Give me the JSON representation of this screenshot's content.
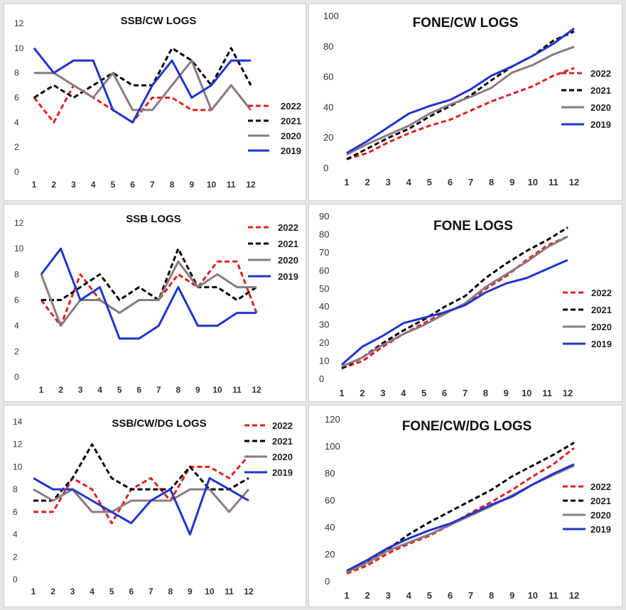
{
  "chart_data": [
    {
      "type": "line",
      "title": "SSB/CW LOGS",
      "x": [
        1,
        2,
        3,
        4,
        5,
        6,
        7,
        8,
        9,
        10,
        11,
        12
      ],
      "ylim": [
        0,
        12
      ],
      "ytick_step": 2,
      "legend": "right",
      "series": [
        {
          "name": "2022",
          "color": "#e0211d",
          "dash": true,
          "values": [
            6,
            4,
            7,
            6,
            5,
            4,
            6,
            6,
            5,
            5,
            7,
            5
          ]
        },
        {
          "name": "2021",
          "color": "#000000",
          "dash": true,
          "values": [
            6,
            7,
            6,
            7,
            8,
            7,
            7,
            10,
            9,
            7,
            10,
            7
          ]
        },
        {
          "name": "2020",
          "color": "#8c7a84",
          "dash": false,
          "values": [
            8,
            8,
            7,
            6,
            8,
            5,
            5,
            7,
            9,
            5,
            7,
            5
          ]
        },
        {
          "name": "2019",
          "color": "#1f35cc",
          "dash": false,
          "values": [
            10,
            8,
            9,
            9,
            5,
            4,
            7,
            9,
            6,
            7,
            9,
            9
          ]
        }
      ]
    },
    {
      "type": "line",
      "title": "FONE/CW LOGS",
      "x": [
        1,
        2,
        3,
        4,
        5,
        6,
        7,
        8,
        9,
        10,
        11,
        12
      ],
      "ylim": [
        0,
        100
      ],
      "ytick_step": 20,
      "legend": "right",
      "series": [
        {
          "name": "2022",
          "color": "#e0211d",
          "dash": true,
          "values": [
            6,
            10,
            17,
            23,
            28,
            32,
            38,
            44,
            49,
            54,
            61,
            66
          ]
        },
        {
          "name": "2021",
          "color": "#000000",
          "dash": true,
          "values": [
            6,
            13,
            20,
            26,
            34,
            41,
            48,
            58,
            67,
            74,
            84,
            90
          ]
        },
        {
          "name": "2020",
          "color": "#8c7a84",
          "dash": false,
          "values": [
            9,
            16,
            22,
            28,
            36,
            42,
            47,
            53,
            63,
            68,
            75,
            80
          ]
        },
        {
          "name": "2019",
          "color": "#1f35cc",
          "dash": false,
          "values": [
            10,
            18,
            27,
            36,
            41,
            45,
            52,
            61,
            67,
            74,
            82,
            92
          ]
        }
      ]
    },
    {
      "type": "line",
      "title": "SSB LOGS",
      "x": [
        1,
        2,
        3,
        4,
        5,
        6,
        7,
        8,
        9,
        10,
        11,
        12
      ],
      "ylim": [
        0,
        12
      ],
      "ytick_step": 2,
      "legend": "top-right",
      "series": [
        {
          "name": "2022",
          "color": "#e0211d",
          "dash": true,
          "values": [
            6,
            4,
            8,
            6,
            5,
            6,
            6,
            8,
            7,
            9,
            9,
            5
          ]
        },
        {
          "name": "2021",
          "color": "#000000",
          "dash": true,
          "values": [
            6,
            6,
            7,
            8,
            6,
            7,
            6,
            10,
            7,
            7,
            6,
            7
          ]
        },
        {
          "name": "2020",
          "color": "#8c7a84",
          "dash": false,
          "values": [
            8,
            4,
            6,
            6,
            5,
            6,
            6,
            9,
            7,
            8,
            7,
            7
          ]
        },
        {
          "name": "2019",
          "color": "#1f35cc",
          "dash": false,
          "values": [
            8,
            10,
            6,
            7,
            3,
            3,
            4,
            7,
            4,
            4,
            5,
            5
          ]
        }
      ]
    },
    {
      "type": "line",
      "title": "FONE LOGS",
      "x": [
        1,
        2,
        3,
        4,
        5,
        6,
        7,
        8,
        9,
        10,
        11,
        12
      ],
      "ylim": [
        0,
        90
      ],
      "ytick_step": 10,
      "legend": "right",
      "series": [
        {
          "name": "2022",
          "color": "#e0211d",
          "dash": true,
          "values": [
            6,
            10,
            18,
            25,
            31,
            37,
            41,
            50,
            57,
            66,
            74,
            79
          ]
        },
        {
          "name": "2021",
          "color": "#000000",
          "dash": true,
          "values": [
            6,
            12,
            20,
            27,
            33,
            40,
            46,
            56,
            64,
            71,
            77,
            84
          ]
        },
        {
          "name": "2020",
          "color": "#8c7a84",
          "dash": false,
          "values": [
            7,
            12,
            19,
            25,
            30,
            36,
            42,
            51,
            58,
            65,
            73,
            79
          ]
        },
        {
          "name": "2019",
          "color": "#1f35cc",
          "dash": false,
          "values": [
            8,
            18,
            24,
            31,
            34,
            37,
            41,
            48,
            53,
            56,
            61,
            66
          ]
        }
      ]
    },
    {
      "type": "line",
      "title": "SSB/CW/DG LOGS",
      "x": [
        1,
        2,
        3,
        4,
        5,
        6,
        7,
        8,
        9,
        10,
        11,
        12
      ],
      "ylim": [
        0,
        14
      ],
      "ytick_step": 2,
      "legend": "top-right",
      "series": [
        {
          "name": "2022",
          "color": "#e0211d",
          "dash": true,
          "values": [
            6,
            6,
            9,
            8,
            5,
            8,
            9,
            7,
            10,
            10,
            9,
            11
          ]
        },
        {
          "name": "2021",
          "color": "#000000",
          "dash": true,
          "values": [
            7,
            7,
            9,
            12,
            9,
            8,
            8,
            8,
            10,
            8,
            8,
            9
          ]
        },
        {
          "name": "2020",
          "color": "#8c7a84",
          "dash": false,
          "values": [
            8,
            7,
            8,
            6,
            6,
            7,
            7,
            7,
            8,
            8,
            6,
            8
          ]
        },
        {
          "name": "2019",
          "color": "#1f35cc",
          "dash": false,
          "values": [
            9,
            8,
            8,
            7,
            6,
            5,
            7,
            8,
            4,
            9,
            8,
            7
          ]
        }
      ]
    },
    {
      "type": "line",
      "title": "FONE/CW/DG LOGS",
      "x": [
        1,
        2,
        3,
        4,
        5,
        6,
        7,
        8,
        9,
        10,
        11,
        12
      ],
      "ylim": [
        0,
        120
      ],
      "ytick_step": 20,
      "legend": "right",
      "series": [
        {
          "name": "2022",
          "color": "#e0211d",
          "dash": true,
          "values": [
            6,
            12,
            21,
            28,
            34,
            42,
            51,
            59,
            68,
            78,
            87,
            99
          ]
        },
        {
          "name": "2021",
          "color": "#000000",
          "dash": true,
          "values": [
            7,
            15,
            24,
            35,
            44,
            52,
            60,
            68,
            78,
            86,
            94,
            103
          ]
        },
        {
          "name": "2020",
          "color": "#8c7a84",
          "dash": false,
          "values": [
            7,
            14,
            23,
            29,
            35,
            42,
            49,
            56,
            64,
            72,
            79,
            86
          ]
        },
        {
          "name": "2019",
          "color": "#1f35cc",
          "dash": false,
          "values": [
            8,
            16,
            25,
            32,
            38,
            43,
            50,
            57,
            63,
            72,
            80,
            87
          ]
        }
      ]
    }
  ]
}
